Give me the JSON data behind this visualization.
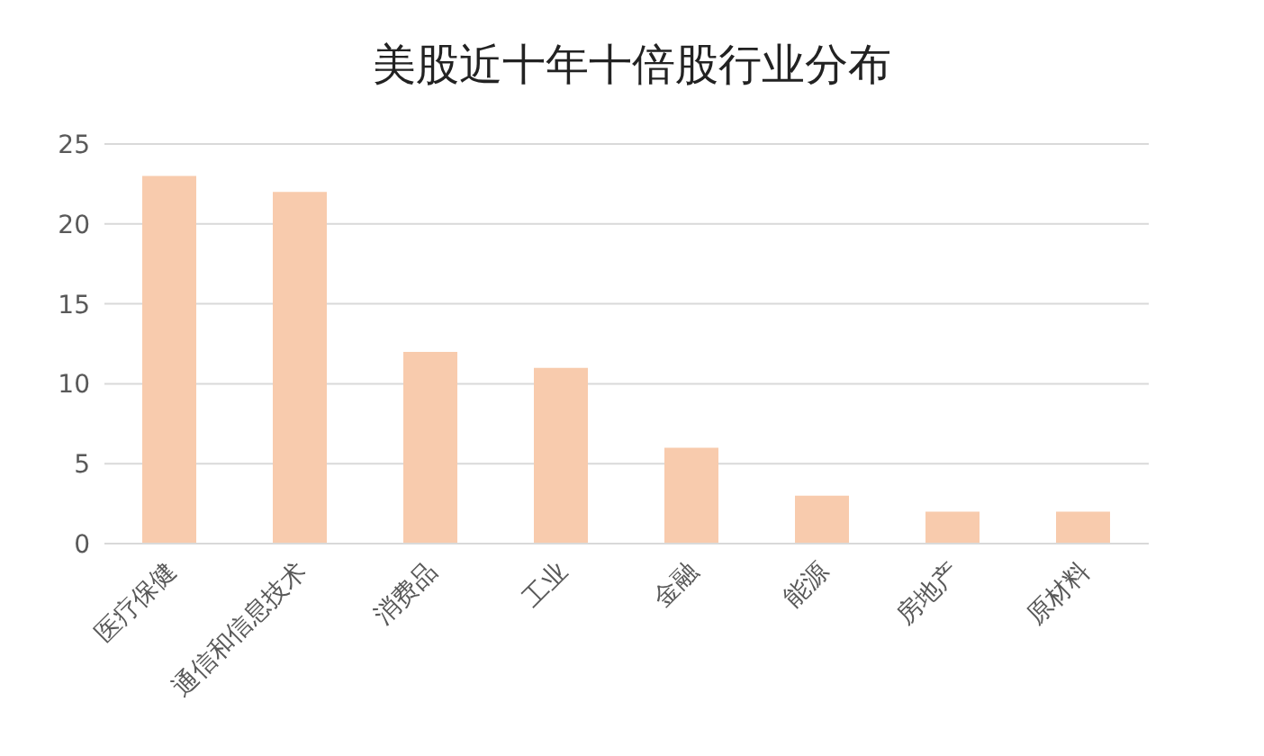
{
  "chart_data": {
    "type": "bar",
    "title": "美股近十年十倍股行业分布",
    "categories": [
      "医疗保健",
      "通信和信息技术",
      "消费品",
      "工业",
      "金融",
      "能源",
      "房地产",
      "原材料"
    ],
    "values": [
      23,
      22,
      12,
      11,
      6,
      3,
      2,
      2
    ],
    "color": "#f8cbad",
    "ylim": [
      0,
      25
    ],
    "yticks": [
      0,
      5,
      10,
      15,
      20,
      25
    ],
    "grid": "y"
  }
}
